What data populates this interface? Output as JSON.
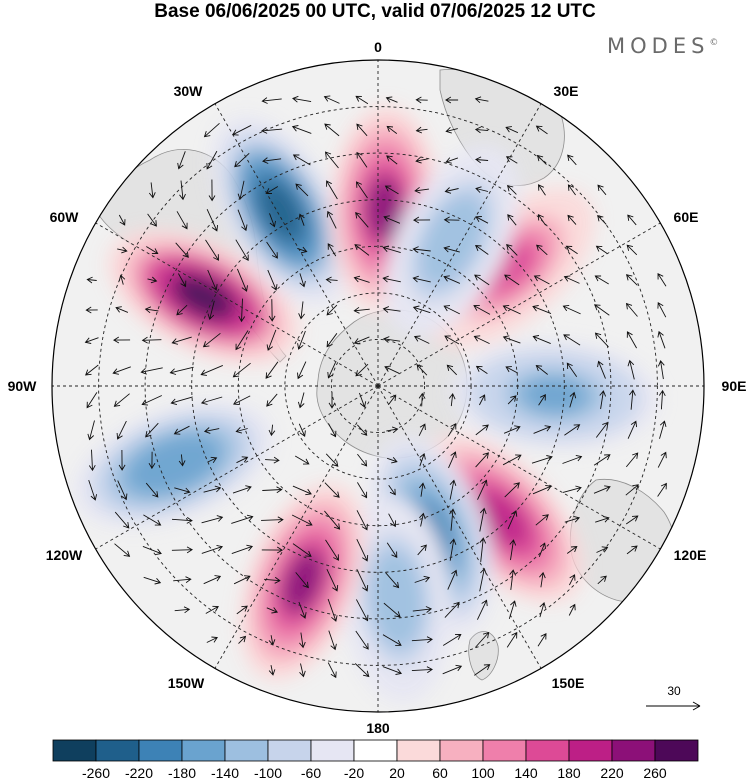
{
  "title": "Base 06/06/2025 00 UTC, valid 07/06/2025 12 UTC",
  "brand": "MODES",
  "brand_mark": "©",
  "longitude_labels": {
    "lon_0": "0",
    "lon_30e": "30E",
    "lon_60e": "60E",
    "lon_90e": "90E",
    "lon_120e": "120E",
    "lon_150e": "150E",
    "lon_180": "180",
    "lon_150w": "150W",
    "lon_120w": "120W",
    "lon_90w": "90W",
    "lon_60w": "60W",
    "lon_30w": "30W"
  },
  "vector_reference": "30",
  "colorbar": {
    "labels": [
      "-260",
      "-220",
      "-180",
      "-140",
      "-100",
      "-60",
      "-20",
      "20",
      "60",
      "100",
      "140",
      "180",
      "220",
      "260"
    ],
    "colors": [
      "#0f3f5e",
      "#1f5f8b",
      "#3d82b6",
      "#6aa3cf",
      "#9dbfe0",
      "#c7d4eb",
      "#e6e6f3",
      "#ffffff",
      "#fbdada",
      "#f7b0c0",
      "#ef7fab",
      "#dd4a96",
      "#bd1f86",
      "#8c1078",
      "#4d0858"
    ]
  },
  "anomaly_centers": [
    {
      "lon": 48,
      "lat": -52,
      "value": 140
    },
    {
      "lon": 93,
      "lat": -52,
      "value": -160
    },
    {
      "lon": 137,
      "lat": -51,
      "value": 200
    },
    {
      "lon": 160,
      "lat": -56,
      "value": -200
    },
    {
      "lon": 175,
      "lat": -44,
      "value": -140
    },
    {
      "lon": -159,
      "lat": -45,
      "value": 220
    },
    {
      "lon": -111,
      "lat": -43,
      "value": -180
    },
    {
      "lon": -63,
      "lat": -48,
      "value": 260
    },
    {
      "lon": -29,
      "lat": -47,
      "value": -260
    },
    {
      "lon": 2,
      "lat": -52,
      "value": 220
    },
    {
      "lon": 27,
      "lat": -55,
      "value": -140
    }
  ]
}
